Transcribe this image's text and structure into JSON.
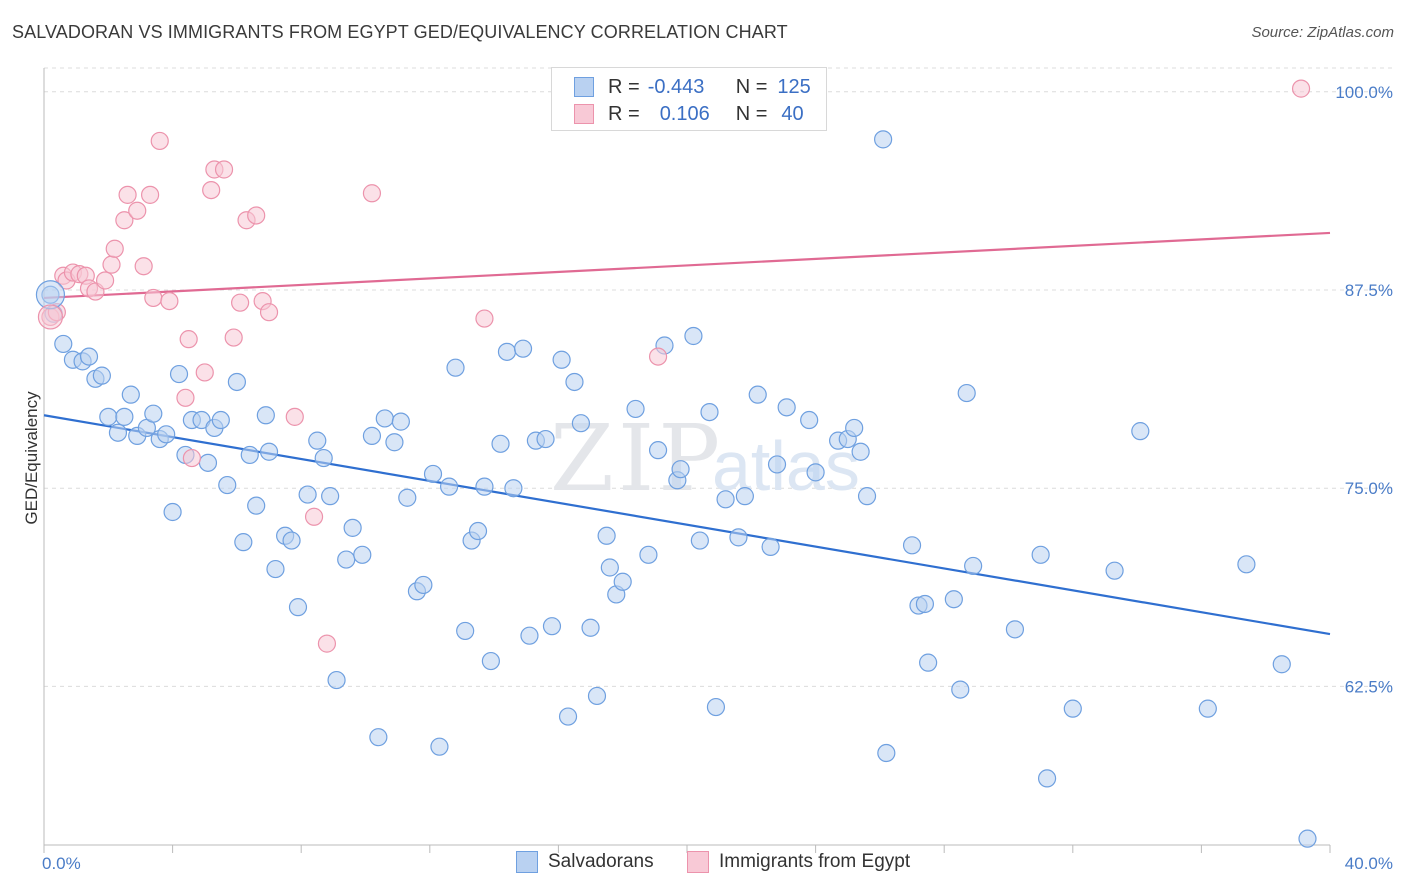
{
  "title": "SALVADORAN VS IMMIGRANTS FROM EGYPT GED/EQUIVALENCY CORRELATION CHART",
  "source": "Source: ZipAtlas.com",
  "watermark": {
    "zip": "ZIP",
    "atlas": "atlas"
  },
  "legend_top": [
    {
      "r_label": "R =",
      "r_value": "-0.443",
      "n_label": "N =",
      "n_value": "125",
      "color": "#6fa0e0",
      "fill": "#b9d1f1"
    },
    {
      "r_label": "R =",
      "r_value": "0.106",
      "n_label": "N =",
      "n_value": "40",
      "color": "#ec93ac",
      "fill": "#f8c9d6"
    }
  ],
  "legend_bottom": [
    {
      "label": "Salvadorans",
      "color": "#6fa0e0",
      "fill": "#b9d1f1"
    },
    {
      "label": "Immigrants from Egypt",
      "color": "#ec93ac",
      "fill": "#f8c9d6"
    }
  ],
  "chart_data": {
    "type": "scatter",
    "title": "SALVADORAN VS IMMIGRANTS FROM EGYPT GED/EQUIVALENCY CORRELATION CHART",
    "xlabel": "",
    "ylabel": "GED/Equivalency",
    "xlim": [
      0,
      40
    ],
    "ylim": [
      52.5,
      101.5
    ],
    "x_tick_labels": [
      "0.0%",
      "40.0%"
    ],
    "y_ticks": [
      62.5,
      75.0,
      87.5,
      100.0
    ],
    "y_tick_labels": [
      "62.5%",
      "75.0%",
      "87.5%",
      "100.0%"
    ],
    "grid": true,
    "legend_placement": "bottom",
    "series": [
      {
        "name": "Salvadorans",
        "color": "#6fa0e0",
        "fill": "#b9d1f1",
        "trend": {
          "x": [
            0,
            40
          ],
          "y": [
            79.6,
            65.8
          ],
          "color": "#2f6fd0"
        },
        "points": [
          [
            0.2,
            87.2
          ],
          [
            0.3,
            86.0
          ],
          [
            0.6,
            84.1
          ],
          [
            0.9,
            83.1
          ],
          [
            1.2,
            83.0
          ],
          [
            1.4,
            83.3
          ],
          [
            1.6,
            81.9
          ],
          [
            1.8,
            82.1
          ],
          [
            2.0,
            79.5
          ],
          [
            2.3,
            78.5
          ],
          [
            2.5,
            79.5
          ],
          [
            2.7,
            80.9
          ],
          [
            2.9,
            78.3
          ],
          [
            3.2,
            78.8
          ],
          [
            3.4,
            79.7
          ],
          [
            3.6,
            78.1
          ],
          [
            3.8,
            78.4
          ],
          [
            4.0,
            73.5
          ],
          [
            4.2,
            82.2
          ],
          [
            4.4,
            77.1
          ],
          [
            4.6,
            79.3
          ],
          [
            4.9,
            79.3
          ],
          [
            5.1,
            76.6
          ],
          [
            5.3,
            78.8
          ],
          [
            5.5,
            79.3
          ],
          [
            5.7,
            75.2
          ],
          [
            6.0,
            81.7
          ],
          [
            6.2,
            71.6
          ],
          [
            6.4,
            77.1
          ],
          [
            6.6,
            73.9
          ],
          [
            6.9,
            79.6
          ],
          [
            7.0,
            77.3
          ],
          [
            7.2,
            69.9
          ],
          [
            7.5,
            72.0
          ],
          [
            7.7,
            71.7
          ],
          [
            7.9,
            67.5
          ],
          [
            8.2,
            74.6
          ],
          [
            8.5,
            78.0
          ],
          [
            8.7,
            76.9
          ],
          [
            8.9,
            74.5
          ],
          [
            9.1,
            62.9
          ],
          [
            9.4,
            70.5
          ],
          [
            9.6,
            72.5
          ],
          [
            9.9,
            70.8
          ],
          [
            10.2,
            78.3
          ],
          [
            10.4,
            59.3
          ],
          [
            10.6,
            79.4
          ],
          [
            10.9,
            77.9
          ],
          [
            11.1,
            79.2
          ],
          [
            11.3,
            74.4
          ],
          [
            11.6,
            68.5
          ],
          [
            11.8,
            68.9
          ],
          [
            12.1,
            75.9
          ],
          [
            12.3,
            58.7
          ],
          [
            12.6,
            75.1
          ],
          [
            12.8,
            82.6
          ],
          [
            13.1,
            66.0
          ],
          [
            13.3,
            71.7
          ],
          [
            13.5,
            72.3
          ],
          [
            13.7,
            75.1
          ],
          [
            13.9,
            64.1
          ],
          [
            14.2,
            77.8
          ],
          [
            14.4,
            83.6
          ],
          [
            14.6,
            75.0
          ],
          [
            14.9,
            83.8
          ],
          [
            15.1,
            65.7
          ],
          [
            15.3,
            78.0
          ],
          [
            15.6,
            78.1
          ],
          [
            15.8,
            66.3
          ],
          [
            16.1,
            83.1
          ],
          [
            16.3,
            60.6
          ],
          [
            16.5,
            81.7
          ],
          [
            16.7,
            79.1
          ],
          [
            17.0,
            66.2
          ],
          [
            17.2,
            61.9
          ],
          [
            17.5,
            72.0
          ],
          [
            17.6,
            70.0
          ],
          [
            17.8,
            68.3
          ],
          [
            18.0,
            69.1
          ],
          [
            18.4,
            80.0
          ],
          [
            18.8,
            70.8
          ],
          [
            19.1,
            77.4
          ],
          [
            19.3,
            84.0
          ],
          [
            19.7,
            75.5
          ],
          [
            19.8,
            76.2
          ],
          [
            20.2,
            84.6
          ],
          [
            20.4,
            71.7
          ],
          [
            20.7,
            79.8
          ],
          [
            20.9,
            61.2
          ],
          [
            21.2,
            74.3
          ],
          [
            21.6,
            71.9
          ],
          [
            21.8,
            74.5
          ],
          [
            22.2,
            80.9
          ],
          [
            22.6,
            71.3
          ],
          [
            22.8,
            76.5
          ],
          [
            23.1,
            80.1
          ],
          [
            23.8,
            79.3
          ],
          [
            24.0,
            76.0
          ],
          [
            24.7,
            78.0
          ],
          [
            25.0,
            78.1
          ],
          [
            25.2,
            78.8
          ],
          [
            25.4,
            77.3
          ],
          [
            25.6,
            74.5
          ],
          [
            26.1,
            97.0
          ],
          [
            26.2,
            58.3
          ],
          [
            27.0,
            71.4
          ],
          [
            27.2,
            67.6
          ],
          [
            27.4,
            67.7
          ],
          [
            27.5,
            64.0
          ],
          [
            28.3,
            68.0
          ],
          [
            28.5,
            62.3
          ],
          [
            28.7,
            81.0
          ],
          [
            28.9,
            70.1
          ],
          [
            30.2,
            66.1
          ],
          [
            31.0,
            70.8
          ],
          [
            31.2,
            56.7
          ],
          [
            32.0,
            61.1
          ],
          [
            33.3,
            69.8
          ],
          [
            34.1,
            78.6
          ],
          [
            36.2,
            61.1
          ],
          [
            37.4,
            70.2
          ],
          [
            38.5,
            63.9
          ],
          [
            39.3,
            52.9
          ]
        ]
      },
      {
        "name": "Immigrants from Egypt",
        "color": "#ec93ac",
        "fill": "#f8c9d6",
        "trend": {
          "x": [
            0,
            40
          ],
          "y": [
            87.0,
            91.1
          ],
          "color": "#e06a93"
        },
        "points": [
          [
            0.2,
            85.8
          ],
          [
            0.4,
            86.1
          ],
          [
            0.6,
            88.4
          ],
          [
            0.7,
            88.1
          ],
          [
            0.9,
            88.6
          ],
          [
            1.1,
            88.5
          ],
          [
            1.3,
            88.4
          ],
          [
            1.4,
            87.6
          ],
          [
            1.6,
            87.4
          ],
          [
            1.9,
            88.1
          ],
          [
            2.1,
            89.1
          ],
          [
            2.2,
            90.1
          ],
          [
            2.5,
            91.9
          ],
          [
            2.6,
            93.5
          ],
          [
            2.9,
            92.5
          ],
          [
            3.1,
            89.0
          ],
          [
            3.3,
            93.5
          ],
          [
            3.4,
            87.0
          ],
          [
            3.6,
            96.9
          ],
          [
            3.9,
            86.8
          ],
          [
            4.4,
            80.7
          ],
          [
            4.5,
            84.4
          ],
          [
            4.6,
            76.9
          ],
          [
            5.0,
            82.3
          ],
          [
            5.2,
            93.8
          ],
          [
            5.3,
            95.1
          ],
          [
            5.6,
            95.1
          ],
          [
            5.9,
            84.5
          ],
          [
            6.1,
            86.7
          ],
          [
            6.3,
            91.9
          ],
          [
            6.6,
            92.2
          ],
          [
            6.8,
            86.8
          ],
          [
            7.0,
            86.1
          ],
          [
            7.8,
            79.5
          ],
          [
            8.4,
            73.2
          ],
          [
            8.8,
            65.2
          ],
          [
            10.2,
            93.6
          ],
          [
            13.7,
            85.7
          ],
          [
            19.1,
            83.3
          ],
          [
            39.1,
            100.2
          ]
        ]
      }
    ]
  }
}
